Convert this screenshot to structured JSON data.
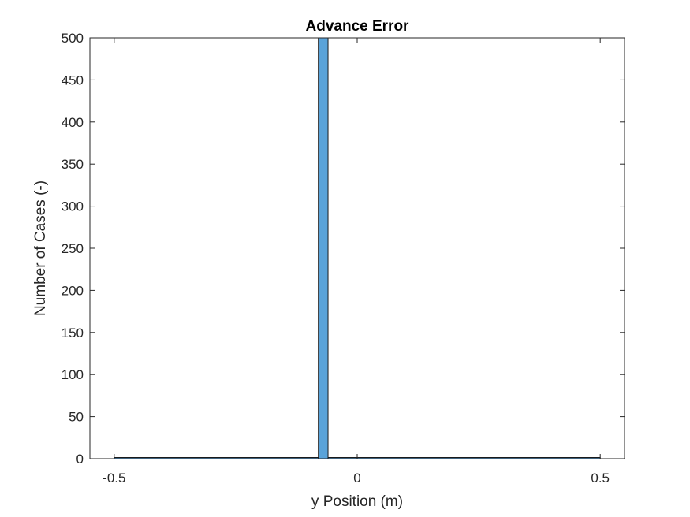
{
  "chart_data": {
    "type": "bar",
    "title": "Advance Error",
    "xlabel": "y Position (m)",
    "ylabel": "Number of Cases (-)",
    "xlim": [
      -0.55,
      0.55
    ],
    "ylim": [
      0,
      500
    ],
    "xticks": [
      -0.5,
      0,
      0.5
    ],
    "xtick_labels": [
      "-0.5",
      "0",
      "0.5"
    ],
    "yticks": [
      0,
      50,
      100,
      150,
      200,
      250,
      300,
      350,
      400,
      450,
      500
    ],
    "ytick_labels": [
      "0",
      "50",
      "100",
      "150",
      "200",
      "250",
      "300",
      "350",
      "400",
      "450",
      "500"
    ],
    "grid": false,
    "bins": [
      {
        "x0": -0.5,
        "x1": -0.08,
        "value": 0
      },
      {
        "x0": -0.08,
        "x1": -0.06,
        "value": 500
      },
      {
        "x0": -0.06,
        "x1": 0.5,
        "value": 0
      }
    ],
    "bar_color": "#5AA3D9",
    "edge_color": "#1a1a1a"
  }
}
